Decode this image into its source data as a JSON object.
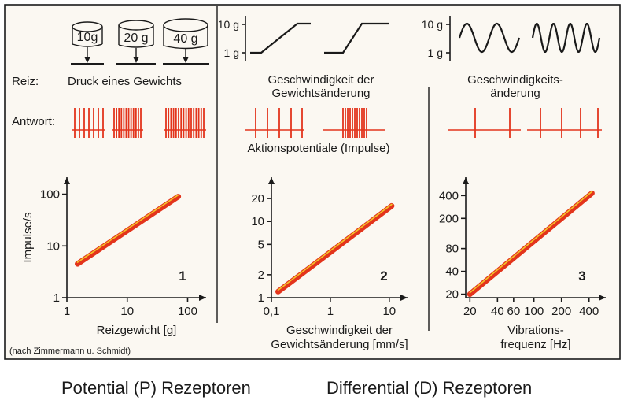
{
  "labels": {
    "reiz": "Reiz:",
    "antwort": "Antwort:",
    "reiz_desc": "Druck eines Gewichts",
    "rate_title": [
      "Geschwindigkeit der",
      "Gewichtsänderung"
    ],
    "accel_title": [
      "Geschwindigkeits-",
      "änderung"
    ],
    "ap_caption": "Aktionspotentiale (Impulse)",
    "source": "(nach Zimmermann u. Schmidt)"
  },
  "weights": [
    "10g",
    "20 g",
    "40 g"
  ],
  "step_ticks": [
    "10 g",
    "1 g"
  ],
  "captions": {
    "potential": "Potential (P) Rezeptoren",
    "differential": "Differential (D) Rezeptoren"
  },
  "chart_data": [
    {
      "type": "line",
      "panel_number": "1",
      "scale": "log-log",
      "xlabel": "Reizgewicht [g]",
      "ylabel": "Impulse/s",
      "x_ticks": [
        "1",
        "10",
        "100"
      ],
      "y_ticks": [
        "1",
        "10",
        "100"
      ],
      "x_tick_values": [
        1,
        10,
        100
      ],
      "y_tick_values": [
        1,
        10,
        100
      ],
      "xlim": [
        1,
        150
      ],
      "ylim": [
        1,
        150
      ],
      "series": [
        {
          "x": [
            1.5,
            70
          ],
          "y": [
            4.5,
            90
          ]
        }
      ]
    },
    {
      "type": "line",
      "panel_number": "2",
      "scale": "log-log",
      "xlabel": [
        "Geschwindigkeit der",
        "Gewichtsänderung [mm/s]"
      ],
      "ylabel": "",
      "x_ticks": [
        "0,1",
        "1",
        "10"
      ],
      "y_ticks": [
        "1",
        "2",
        "5",
        "10",
        "20"
      ],
      "x_tick_values": [
        0.1,
        1,
        10
      ],
      "y_tick_values": [
        1,
        2,
        5,
        10,
        20
      ],
      "xlim": [
        0.1,
        15
      ],
      "ylim": [
        1,
        30
      ],
      "series": [
        {
          "x": [
            0.13,
            11
          ],
          "y": [
            1.2,
            16
          ]
        }
      ]
    },
    {
      "type": "line",
      "panel_number": "3",
      "scale": "log-log",
      "xlabel": [
        "Vibrations-",
        "frequenz [Hz]"
      ],
      "ylabel": "",
      "x_ticks": [
        "20",
        "40",
        "60",
        "100",
        "200",
        "400"
      ],
      "y_ticks": [
        "20",
        "40",
        "80",
        "200",
        "400"
      ],
      "x_tick_values": [
        20,
        40,
        60,
        100,
        200,
        400
      ],
      "y_tick_values": [
        20,
        40,
        80,
        200,
        400
      ],
      "xlim": [
        18,
        500
      ],
      "ylim": [
        18,
        550
      ],
      "series": [
        {
          "x": [
            20,
            430
          ],
          "y": [
            20,
            430
          ]
        }
      ]
    }
  ]
}
